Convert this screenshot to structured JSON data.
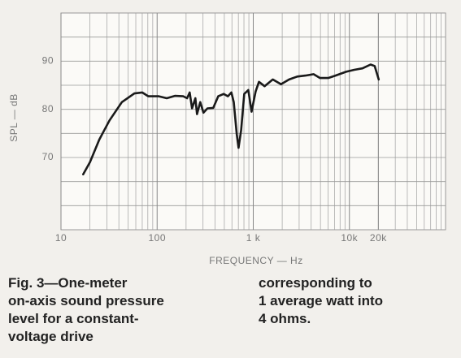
{
  "chart_data": {
    "type": "line",
    "x_label": "FREQUENCY — Hz",
    "y_label": "SPL — dB",
    "xscale": "log",
    "xlim": [
      10,
      100000
    ],
    "ylim": [
      55,
      100
    ],
    "xticks": [
      10,
      100,
      {
        "value": 1000,
        "label": "1 k"
      },
      {
        "value": 10000,
        "label": "10k"
      },
      {
        "value": 20000,
        "label": "20k"
      }
    ],
    "yticks": [
      70,
      80,
      90
    ],
    "ygrid": [
      55,
      60,
      65,
      70,
      75,
      80,
      85,
      90,
      95,
      100
    ],
    "grid": true,
    "series": [
      {
        "color": "#1a1a1a",
        "x": [
          17,
          20,
          25,
          32,
          43,
          58,
          70,
          81,
          104,
          126,
          153,
          187,
          205,
          218,
          231,
          250,
          260,
          281,
          303,
          334,
          384,
          432,
          493,
          545,
          592,
          627,
          673,
          703,
          748,
          805,
          888,
          960,
          1058,
          1146,
          1311,
          1597,
          1941,
          2360,
          2869,
          3487,
          4239,
          4950,
          6018,
          7167,
          9240,
          11234,
          13657,
          16601,
          18300,
          20182
        ],
        "values": [
          66.5,
          69,
          73.7,
          77.7,
          81.5,
          83.3,
          83.5,
          82.7,
          82.7,
          82.3,
          82.8,
          82.7,
          82.3,
          83.5,
          80.2,
          82.3,
          79,
          81.5,
          79.3,
          80.2,
          80.3,
          82.7,
          83.2,
          82.7,
          83.5,
          81.5,
          74.8,
          72,
          75.7,
          83.2,
          84,
          79.5,
          83.7,
          85.7,
          84.8,
          86.2,
          85.2,
          86.2,
          86.8,
          87,
          87.3,
          86.5,
          86.5,
          87,
          87.8,
          88.2,
          88.5,
          89.3,
          89,
          86.2
        ]
      }
    ]
  },
  "caption": {
    "left": [
      "Fig. 3—One-meter",
      "on-axis sound pressure",
      "level for a constant-",
      "voltage drive"
    ],
    "right": [
      "corresponding to",
      "1 average watt into",
      "4 ohms."
    ]
  }
}
